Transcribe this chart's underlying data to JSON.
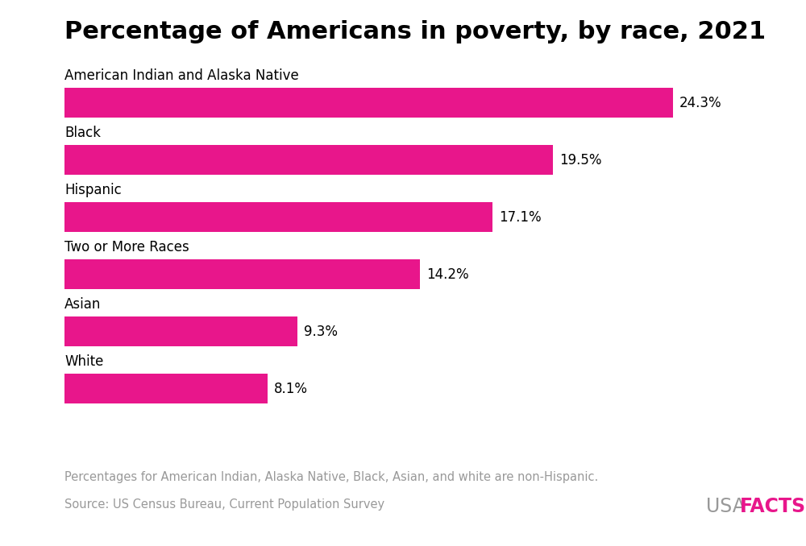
{
  "title": "Percentage of Americans in poverty, by race, 2021",
  "categories": [
    "American Indian and Alaska Native",
    "Black",
    "Hispanic",
    "Two or More Races",
    "Asian",
    "White"
  ],
  "values": [
    24.3,
    19.5,
    17.1,
    14.2,
    9.3,
    8.1
  ],
  "labels": [
    "24.3%",
    "19.5%",
    "17.1%",
    "14.2%",
    "9.3%",
    "8.1%"
  ],
  "bar_color": "#E8168B",
  "background_color": "#ffffff",
  "title_fontsize": 22,
  "title_fontweight": "bold",
  "category_fontsize": 12,
  "label_fontsize": 12,
  "footnote1": "Percentages for American Indian, Alaska Native, Black, Asian, and white are non-Hispanic.",
  "footnote2": "Source: US Census Bureau, Current Population Survey",
  "footnote_color": "#999999",
  "footnote_fontsize": 10.5,
  "xlim": [
    0,
    28
  ],
  "usafacts_color_usa": "#999999",
  "usafacts_color_facts": "#E8168B",
  "usafacts_fontsize": 17
}
